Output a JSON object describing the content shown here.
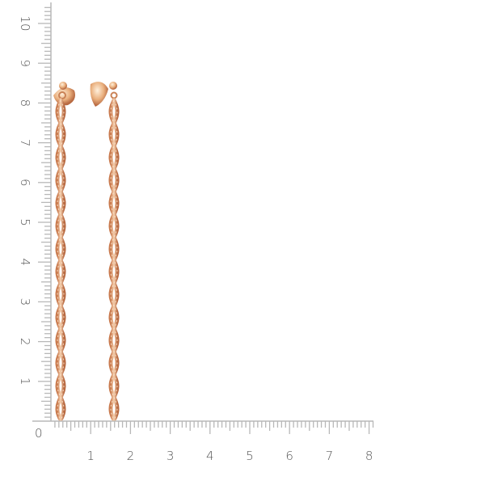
{
  "ruler": {
    "unit": "cm",
    "origin_label": "0",
    "vertical_labels": [
      "1",
      "2",
      "3",
      "4",
      "5",
      "6",
      "7",
      "8",
      "9",
      "10"
    ],
    "horizontal_labels": [
      "1",
      "2",
      "3",
      "4",
      "5",
      "6",
      "7",
      "8"
    ],
    "tick_color": "#b8b8b8",
    "label_color": "#555555"
  },
  "product": {
    "type": "pair of twisted chain drop earrings",
    "metal_color": "#e8a878",
    "length_cm": 8.5
  }
}
